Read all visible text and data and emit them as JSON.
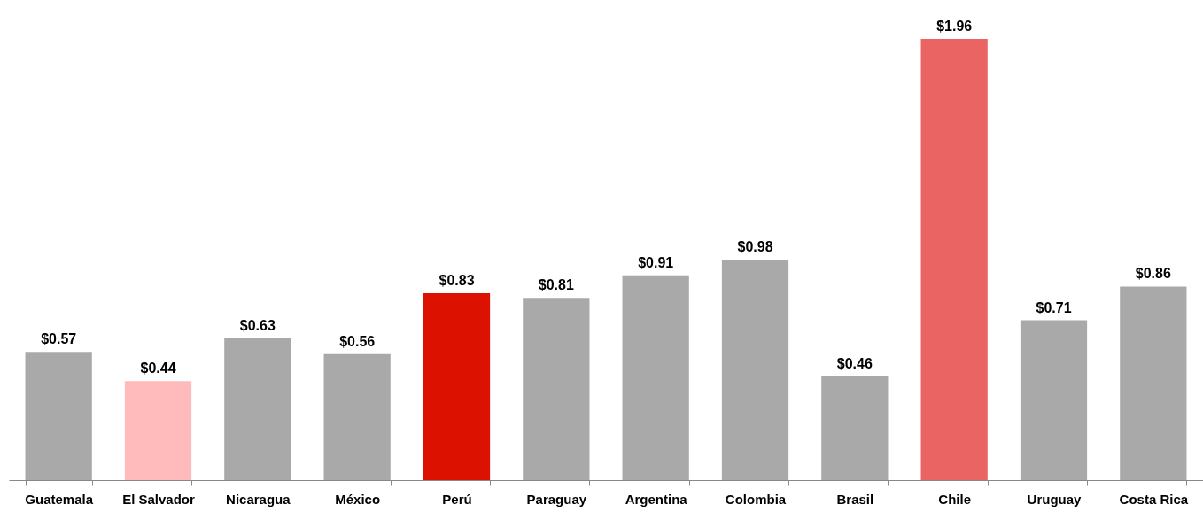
{
  "chart_data": {
    "type": "bar",
    "categories": [
      "Guatemala",
      "El Salvador",
      "Nicaragua",
      "México",
      "Perú",
      "Paraguay",
      "Argentina",
      "Colombia",
      "Brasil",
      "Chile",
      "Uruguay",
      "Costa Rica"
    ],
    "values": [
      0.57,
      0.44,
      0.63,
      0.56,
      0.83,
      0.81,
      0.91,
      0.98,
      0.46,
      1.96,
      0.71,
      0.86
    ],
    "colors": [
      "#a9a9a9",
      "#ffbbbb",
      "#a9a9a9",
      "#a9a9a9",
      "#dd1100",
      "#a9a9a9",
      "#a9a9a9",
      "#a9a9a9",
      "#a9a9a9",
      "#ea6464",
      "#a9a9a9",
      "#a9a9a9"
    ],
    "value_labels": [
      "$0.57",
      "$0.44",
      "$0.63",
      "$0.56",
      "$0.83",
      "$0.81",
      "$0.91",
      "$0.98",
      "$0.46",
      "$1.96",
      "$0.71",
      "$0.86"
    ],
    "grid": false
  }
}
